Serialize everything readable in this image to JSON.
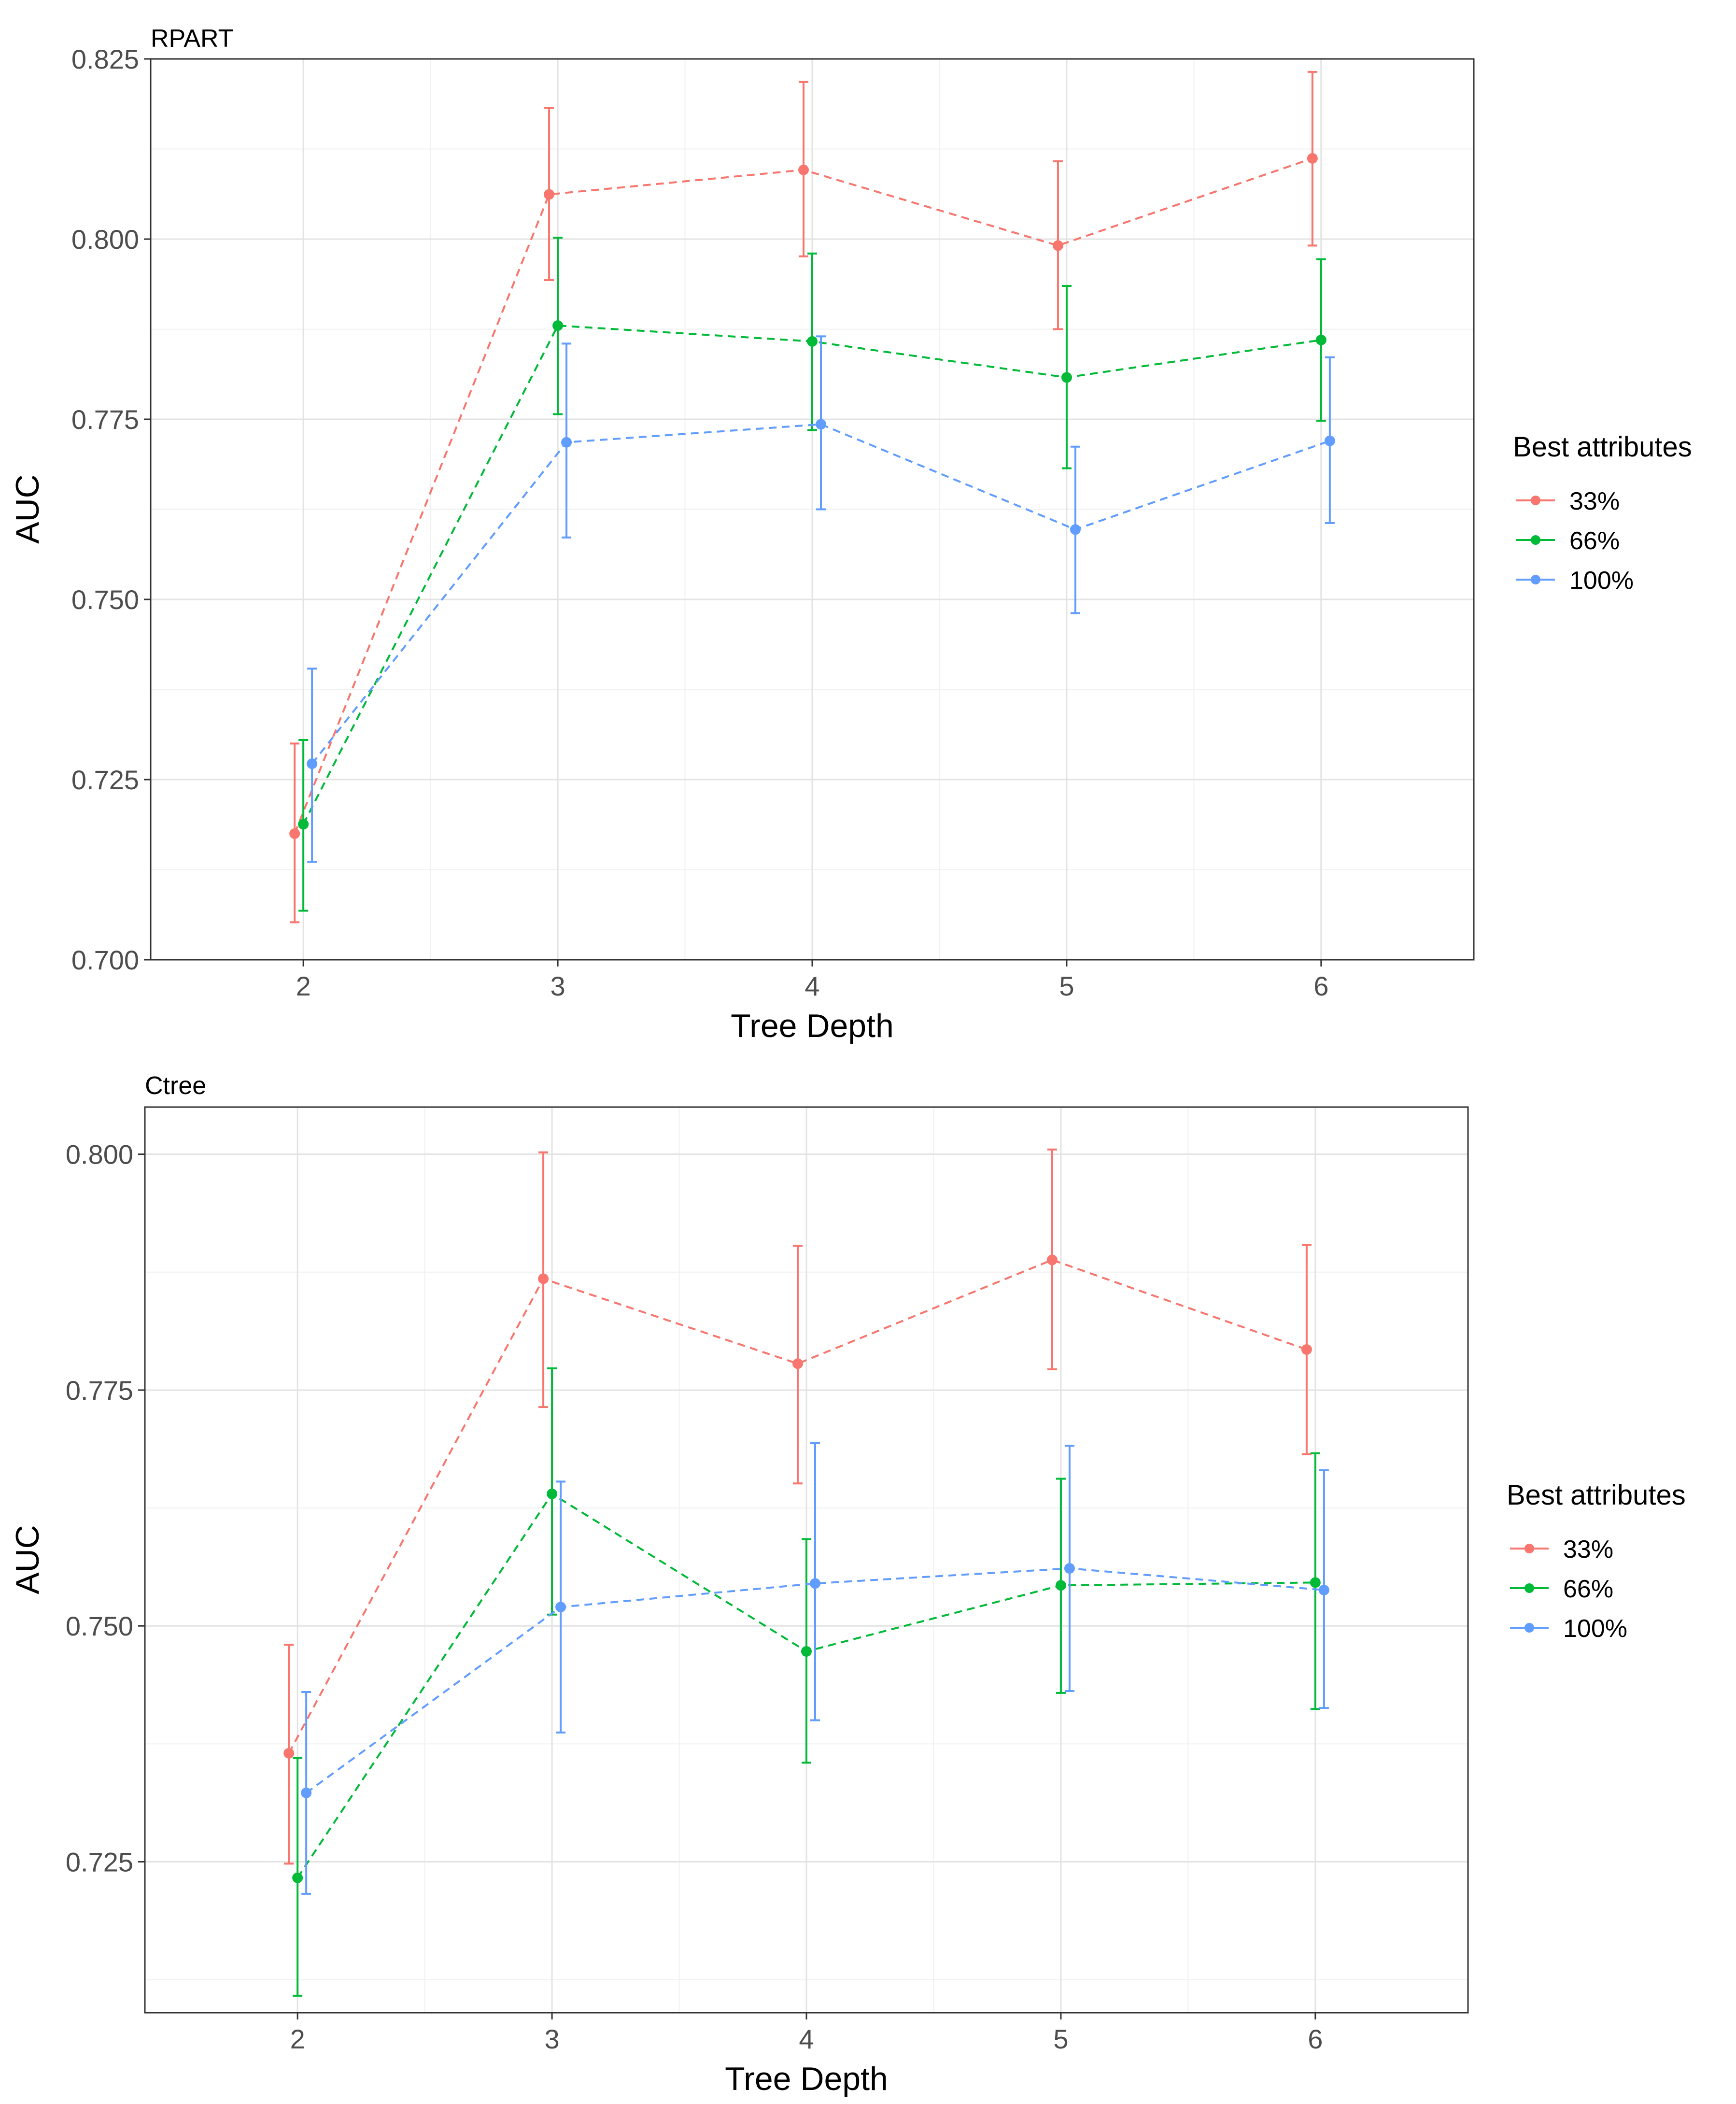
{
  "legend": {
    "title": "Best attributes",
    "entries": [
      {
        "label": "33%",
        "color": "#F8766D"
      },
      {
        "label": "66%",
        "color": "#00BA38"
      },
      {
        "label": "100%",
        "color": "#619CFF"
      }
    ]
  },
  "chart_data": [
    {
      "type": "line",
      "title": "RPART",
      "xlabel": "Tree Depth",
      "ylabel": "AUC",
      "categories": [
        "2",
        "3",
        "4",
        "5",
        "6"
      ],
      "ylim": [
        0.7,
        0.825
      ],
      "yticks": [
        "0.700",
        "0.725",
        "0.750",
        "0.775",
        "0.800",
        "0.825"
      ],
      "grid": true,
      "legend_position": "right",
      "series": [
        {
          "name": "33%",
          "color": "#F8766D",
          "values": [
            0.7175,
            0.8062,
            0.8096,
            0.7991,
            0.8112
          ],
          "lower": [
            0.7052,
            0.7943,
            0.7976,
            0.7875,
            0.7991
          ],
          "upper": [
            0.73,
            0.8182,
            0.8218,
            0.8108,
            0.8232
          ]
        },
        {
          "name": "66%",
          "color": "#00BA38",
          "values": [
            0.7188,
            0.788,
            0.7858,
            0.7808,
            0.786
          ],
          "lower": [
            0.7068,
            0.7757,
            0.7735,
            0.7682,
            0.7748
          ],
          "upper": [
            0.7305,
            0.8002,
            0.798,
            0.7935,
            0.7972
          ]
        },
        {
          "name": "100%",
          "color": "#619CFF",
          "values": [
            0.7272,
            0.7718,
            0.7743,
            0.7597,
            0.772
          ],
          "lower": [
            0.7136,
            0.7586,
            0.7625,
            0.7481,
            0.7606
          ],
          "upper": [
            0.7404,
            0.7855,
            0.7865,
            0.7712,
            0.7836
          ]
        }
      ]
    },
    {
      "type": "line",
      "title": "Ctree",
      "xlabel": "Tree Depth",
      "ylabel": "AUC",
      "categories": [
        "2",
        "3",
        "4",
        "5",
        "6"
      ],
      "ylim": [
        0.709,
        0.805
      ],
      "yticks": [
        "0.725",
        "0.750",
        "0.775",
        "0.800"
      ],
      "grid": true,
      "legend_position": "right",
      "series": [
        {
          "name": "33%",
          "color": "#F8766D",
          "values": [
            0.7365,
            0.7868,
            0.7778,
            0.7888,
            0.7793
          ],
          "lower": [
            0.7248,
            0.7732,
            0.7651,
            0.7772,
            0.7682
          ],
          "upper": [
            0.748,
            0.8002,
            0.7903,
            0.8005,
            0.7904
          ]
        },
        {
          "name": "66%",
          "color": "#00BA38",
          "values": [
            0.7233,
            0.764,
            0.7473,
            0.7543,
            0.7546
          ],
          "lower": [
            0.7108,
            0.7512,
            0.7355,
            0.7429,
            0.7412
          ],
          "upper": [
            0.736,
            0.7773,
            0.7592,
            0.7656,
            0.7683
          ]
        },
        {
          "name": "100%",
          "color": "#619CFF",
          "values": [
            0.7323,
            0.752,
            0.7545,
            0.7561,
            0.7538
          ],
          "lower": [
            0.7216,
            0.7387,
            0.74,
            0.7431,
            0.7413
          ],
          "upper": [
            0.743,
            0.7653,
            0.7694,
            0.7691,
            0.7665
          ]
        }
      ]
    }
  ]
}
